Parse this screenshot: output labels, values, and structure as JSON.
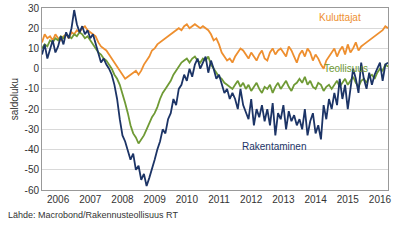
{
  "chart_data": {
    "type": "line",
    "y_label": "saldoluku",
    "source": "Lähde: Macrobond/Rakennusteollisuus RT",
    "grid": true,
    "ylim": [
      -60,
      30
    ],
    "yticks": [
      -60,
      -50,
      -40,
      -30,
      -20,
      -10,
      0,
      10,
      20,
      30
    ],
    "categories": [
      null,
      null,
      null,
      null,
      null,
      null,
      "2006",
      null,
      null,
      null,
      null,
      null,
      null,
      null,
      null,
      null,
      null,
      null,
      "2007",
      null,
      null,
      null,
      null,
      null,
      null,
      null,
      null,
      null,
      null,
      null,
      "2008",
      null,
      null,
      null,
      null,
      null,
      null,
      null,
      null,
      null,
      null,
      null,
      "2009",
      null,
      null,
      null,
      null,
      null,
      null,
      null,
      null,
      null,
      null,
      null,
      "2010",
      null,
      null,
      null,
      null,
      null,
      null,
      null,
      null,
      null,
      null,
      null,
      "2011",
      null,
      null,
      null,
      null,
      null,
      null,
      null,
      null,
      null,
      null,
      null,
      "2012",
      null,
      null,
      null,
      null,
      null,
      null,
      null,
      null,
      null,
      null,
      null,
      "2013",
      null,
      null,
      null,
      null,
      null,
      null,
      null,
      null,
      null,
      null,
      null,
      "2014",
      null,
      null,
      null,
      null,
      null,
      null,
      null,
      null,
      null,
      null,
      null,
      "2015",
      null,
      null,
      null,
      null,
      null,
      null,
      null,
      null,
      null,
      null,
      null,
      "2016",
      null,
      null,
      null
    ],
    "series": [
      {
        "name": "Kuluttajat",
        "color": "#ee8f2f",
        "values": [
          13,
          17,
          15,
          16,
          14,
          17,
          15,
          14,
          16,
          17,
          15,
          18,
          17,
          19,
          18,
          20,
          21,
          19,
          18,
          17,
          16,
          13,
          11,
          10,
          9,
          7,
          5,
          3,
          1,
          -1,
          -3,
          -5,
          -4,
          -3,
          -2,
          -1,
          -3,
          -1,
          2,
          4,
          6,
          9,
          10,
          12,
          13,
          14,
          15,
          16,
          17,
          18,
          19,
          20,
          19,
          21,
          22,
          20,
          21,
          22,
          21,
          20,
          21,
          20,
          19,
          17,
          14,
          15,
          12,
          8,
          6,
          4,
          5,
          3,
          6,
          8,
          10,
          9,
          7,
          5,
          8,
          6,
          4,
          7,
          9,
          5,
          4,
          8,
          10,
          7,
          9,
          10,
          8,
          6,
          11,
          9,
          6,
          3,
          7,
          9,
          6,
          10,
          8,
          4,
          7,
          5,
          2,
          0,
          4,
          6,
          8,
          10,
          6,
          9,
          11,
          7,
          12,
          8,
          10,
          13,
          9,
          11,
          12,
          13,
          14,
          15,
          16,
          17,
          18,
          19,
          21,
          20
        ]
      },
      {
        "name": "Teollisuus",
        "color": "#6f9a35",
        "values": [
          10,
          12,
          11,
          14,
          13,
          15,
          14,
          16,
          15,
          17,
          16,
          15,
          17,
          16,
          18,
          17,
          15,
          16,
          14,
          12,
          10,
          8,
          7,
          5,
          4,
          2,
          0,
          -3,
          -5,
          -8,
          -12,
          -17,
          -22,
          -28,
          -32,
          -34,
          -37,
          -35,
          -33,
          -30,
          -27,
          -24,
          -22,
          -19,
          -15,
          -12,
          -10,
          -8,
          -6,
          -3,
          -1,
          1,
          3,
          4,
          5,
          3,
          5,
          6,
          4,
          3,
          5,
          4,
          6,
          2,
          0,
          -2,
          -4,
          -5,
          -7,
          -8,
          -9,
          -10,
          -8,
          -6,
          -9,
          -7,
          -10,
          -8,
          -11,
          -9,
          -7,
          -10,
          -12,
          -9,
          -10,
          -8,
          -12,
          -9,
          -7,
          -10,
          -8,
          -6,
          -9,
          -11,
          -8,
          -7,
          -5,
          -7,
          -4,
          -8,
          -6,
          -9,
          -10,
          -7,
          -8,
          -11,
          -9,
          -8,
          -10,
          -8,
          -6,
          -9,
          -7,
          -5,
          -8,
          -6,
          -4,
          -7,
          -9,
          -6,
          -5,
          -7,
          -4,
          -3,
          -5,
          -2,
          0,
          -1,
          2,
          1
        ]
      },
      {
        "name": "Rakentaminen",
        "color": "#1c3466",
        "values": [
          7,
          12,
          5,
          10,
          14,
          8,
          11,
          16,
          12,
          18,
          15,
          20,
          29,
          22,
          18,
          21,
          17,
          19,
          15,
          17,
          12,
          8,
          3,
          5,
          2,
          0,
          -3,
          -8,
          -15,
          -25,
          -33,
          -36,
          -40,
          -45,
          -42,
          -50,
          -48,
          -55,
          -52,
          -58,
          -54,
          -50,
          -45,
          -40,
          -36,
          -30,
          -32,
          -25,
          -22,
          -15,
          -18,
          -10,
          -8,
          -3,
          -6,
          0,
          -4,
          2,
          5,
          0,
          3,
          6,
          -2,
          4,
          0,
          -5,
          -3,
          -8,
          -12,
          -10,
          -15,
          -12,
          -15,
          -20,
          -10,
          -18,
          -22,
          -25,
          -15,
          -28,
          -20,
          -24,
          -18,
          -26,
          -20,
          -28,
          -17,
          -33,
          -22,
          -25,
          -18,
          -30,
          -21,
          -26,
          -23,
          -28,
          -25,
          -30,
          -20,
          -33,
          -26,
          -22,
          -32,
          -28,
          -35,
          -18,
          -25,
          -15,
          -20,
          -12,
          -18,
          -5,
          -15,
          -8,
          -20,
          -10,
          0,
          -5,
          -12,
          3,
          -5,
          -10,
          -2,
          -8,
          -3,
          0,
          3,
          -6,
          2,
          3
        ]
      }
    ]
  }
}
